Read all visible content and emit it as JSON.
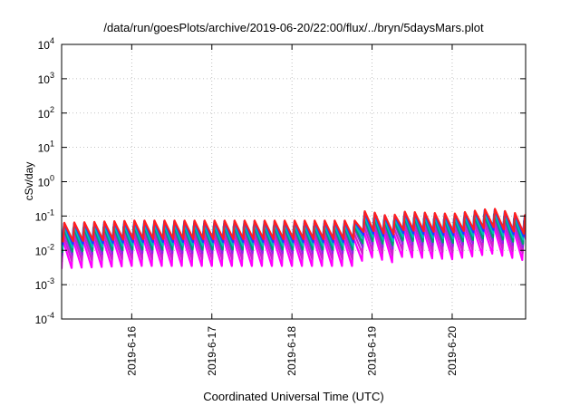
{
  "chart_data": {
    "type": "line",
    "title": "/data/run/goesPlots/archive/2019-06-20/22:00/flux/../bryn/5daysMars.plot",
    "xlabel": "Coordinated Universal Time (UTC)",
    "ylabel": "cSv/day",
    "yscale": "log",
    "ylim": [
      0.0001,
      10000
    ],
    "xlim": [
      "2019-06-15 03:00",
      "2019-06-20 22:00"
    ],
    "y_ticks": [
      {
        "base": "10",
        "exp": "-4"
      },
      {
        "base": "10",
        "exp": "-3"
      },
      {
        "base": "10",
        "exp": "-2"
      },
      {
        "base": "10",
        "exp": "-1"
      },
      {
        "base": "10",
        "exp": "0"
      },
      {
        "base": "10",
        "exp": "1"
      },
      {
        "base": "10",
        "exp": "2"
      },
      {
        "base": "10",
        "exp": "3"
      },
      {
        "base": "10",
        "exp": "4"
      }
    ],
    "x_ticks": [
      {
        "label": "2019-6-16",
        "date": "2019-06-16"
      },
      {
        "label": "2019-6-17",
        "date": "2019-06-17"
      },
      {
        "label": "2019-6-18",
        "date": "2019-06-18"
      },
      {
        "label": "2019-6-19",
        "date": "2019-06-19"
      },
      {
        "label": "2019-6-20",
        "date": "2019-06-20"
      }
    ],
    "grid": true,
    "legend": "none",
    "sawtooth_period_hours": 3,
    "envelope_peaks": [
      {
        "date": "2019-06-15 03:00",
        "peak": 0.06
      },
      {
        "date": "2019-06-16 00:00",
        "peak": 0.07
      },
      {
        "date": "2019-06-17 00:00",
        "peak": 0.07
      },
      {
        "date": "2019-06-18 00:00",
        "peak": 0.07
      },
      {
        "date": "2019-06-18 20:00",
        "peak": 0.07
      },
      {
        "date": "2019-06-18 22:00",
        "peak": 0.14
      },
      {
        "date": "2019-06-19 06:00",
        "peak": 0.09
      },
      {
        "date": "2019-06-19 08:00",
        "peak": 0.13
      },
      {
        "date": "2019-06-20 00:00",
        "peak": 0.11
      },
      {
        "date": "2019-06-20 12:00",
        "peak": 0.16
      },
      {
        "date": "2019-06-20 22:00",
        "peak": 0.1
      }
    ],
    "series": [
      {
        "color": "#ff00ff",
        "peak_factor": 0.35,
        "min_factor": 0.05
      },
      {
        "color": "#cc22cc",
        "peak_factor": 0.5,
        "min_factor": 0.08
      },
      {
        "color": "#8a2be2",
        "peak_factor": 0.7,
        "min_factor": 0.12
      },
      {
        "color": "#009e73",
        "peak_factor": 0.75,
        "min_factor": 0.15
      },
      {
        "color": "#00bfbf",
        "peak_factor": 0.85,
        "min_factor": 0.2
      },
      {
        "color": "#1f3fff",
        "peak_factor": 1.0,
        "min_factor": 0.25
      },
      {
        "color": "#ff2020",
        "peak_factor": 1.05,
        "min_factor": 0.3
      }
    ]
  }
}
